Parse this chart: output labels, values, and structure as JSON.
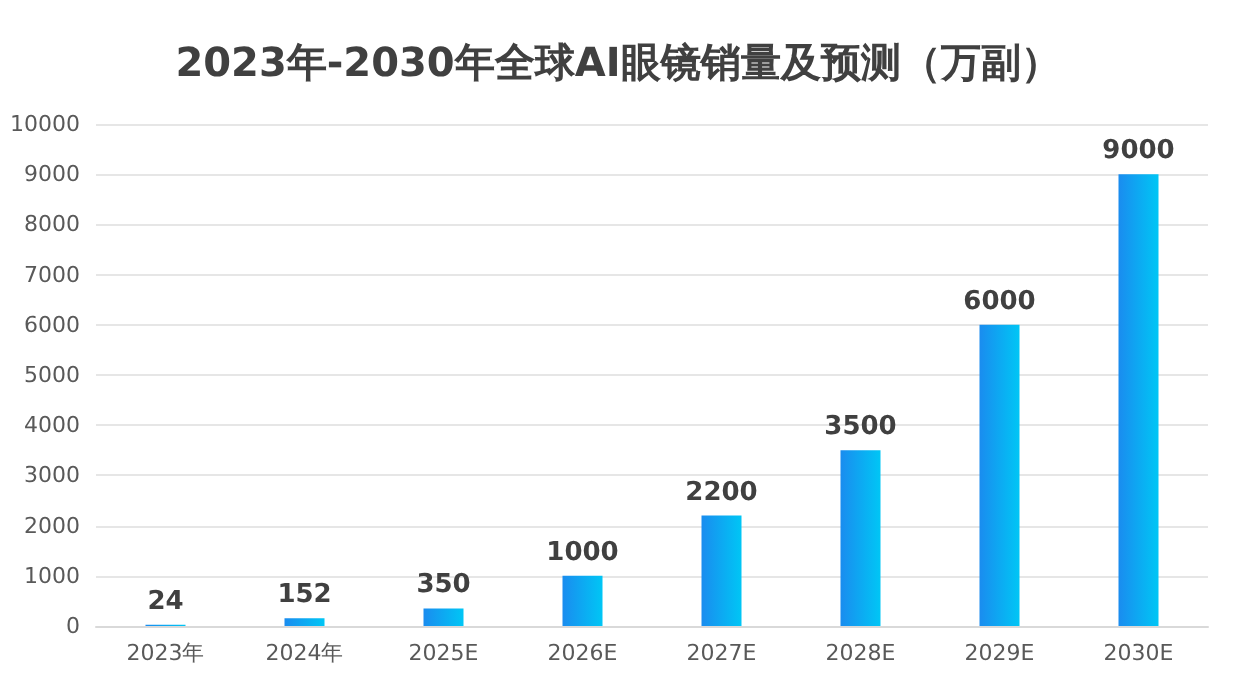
{
  "chart_data": {
    "type": "bar",
    "title": "2023年-2030年全球AI眼镜销量及预测（万副）",
    "categories": [
      "2023年",
      "2024年",
      "2025E",
      "2026E",
      "2027E",
      "2028E",
      "2029E",
      "2030E"
    ],
    "values": [
      24,
      152,
      350,
      1000,
      2200,
      3500,
      6000,
      9000
    ],
    "color": "#1a8cef",
    "ylim": [
      0,
      10000
    ],
    "yticks": [
      0,
      1000,
      2000,
      3000,
      4000,
      5000,
      6000,
      7000,
      8000,
      9000,
      10000
    ],
    "grid": "y",
    "data_labels": true
  }
}
